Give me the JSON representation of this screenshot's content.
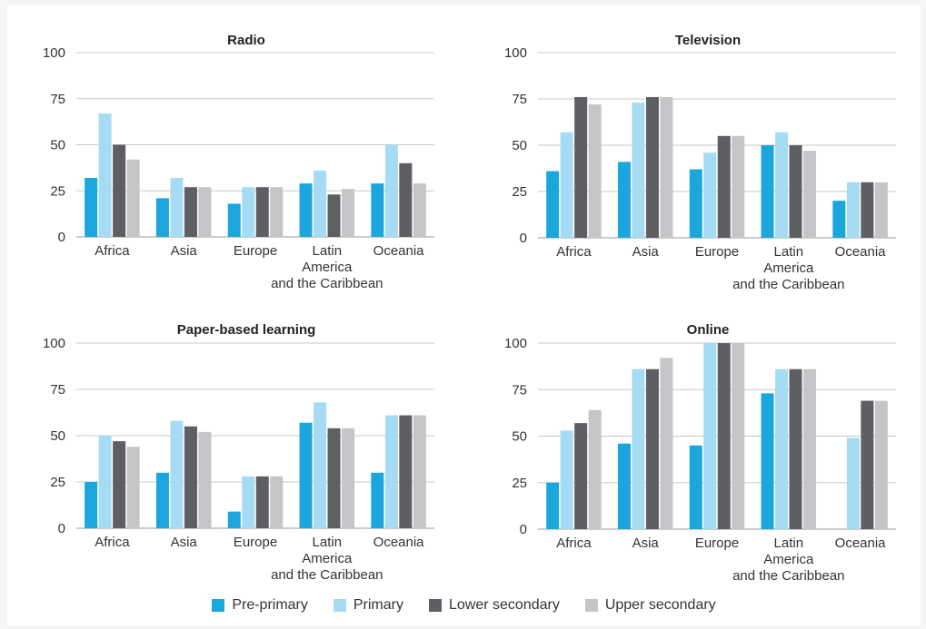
{
  "colors": {
    "pre_primary": "#1ba6dd",
    "primary": "#a6dcf3",
    "lower_secondary": "#5d5f63",
    "upper_secondary": "#c4c5c7"
  },
  "legend": [
    {
      "name": "Pre-primary",
      "color": "#1ba6dd"
    },
    {
      "name": "Primary",
      "color": "#a6dcf3"
    },
    {
      "name": "Lower secondary",
      "color": "#5d5f63"
    },
    {
      "name": "Upper secondary",
      "color": "#c4c5c7"
    }
  ],
  "chart_data": [
    {
      "type": "bar",
      "title": "Radio",
      "categories": [
        [
          "Africa"
        ],
        [
          "Asia"
        ],
        [
          "Europe"
        ],
        [
          "Latin",
          "America",
          "and the Caribbean"
        ],
        [
          "Oceania"
        ]
      ],
      "yticks": [
        0,
        25,
        50,
        75,
        100
      ],
      "ylim": [
        0,
        100
      ],
      "series": [
        {
          "name": "Pre-primary",
          "values": [
            32,
            21,
            18,
            29,
            29
          ]
        },
        {
          "name": "Primary",
          "values": [
            67,
            32,
            27,
            36,
            50
          ]
        },
        {
          "name": "Lower secondary",
          "values": [
            50,
            27,
            27,
            23,
            40
          ]
        },
        {
          "name": "Upper secondary",
          "values": [
            42,
            27,
            27,
            26,
            29
          ]
        }
      ]
    },
    {
      "type": "bar",
      "title": "Television",
      "categories": [
        [
          "Africa"
        ],
        [
          "Asia"
        ],
        [
          "Europe"
        ],
        [
          "Latin",
          "America",
          "and the Caribbean"
        ],
        [
          "Oceania"
        ]
      ],
      "yticks": [
        0,
        25,
        50,
        75,
        100
      ],
      "ylim": [
        0,
        100
      ],
      "series": [
        {
          "name": "Pre-primary",
          "values": [
            36,
            41,
            37,
            50,
            20
          ]
        },
        {
          "name": "Primary",
          "values": [
            57,
            73,
            46,
            57,
            30
          ]
        },
        {
          "name": "Lower secondary",
          "values": [
            76,
            76,
            55,
            50,
            30
          ]
        },
        {
          "name": "Upper secondary",
          "values": [
            72,
            76,
            55,
            47,
            30
          ]
        }
      ]
    },
    {
      "type": "bar",
      "title": "Paper-based learning",
      "categories": [
        [
          "Africa"
        ],
        [
          "Asia"
        ],
        [
          "Europe"
        ],
        [
          "Latin",
          "America",
          "and the Caribbean"
        ],
        [
          "Oceania"
        ]
      ],
      "yticks": [
        0,
        25,
        50,
        75,
        100
      ],
      "ylim": [
        0,
        100
      ],
      "series": [
        {
          "name": "Pre-primary",
          "values": [
            25,
            30,
            9,
            57,
            30
          ]
        },
        {
          "name": "Primary",
          "values": [
            50,
            58,
            28,
            68,
            61
          ]
        },
        {
          "name": "Lower secondary",
          "values": [
            47,
            55,
            28,
            54,
            61
          ]
        },
        {
          "name": "Upper secondary",
          "values": [
            44,
            52,
            28,
            54,
            61
          ]
        }
      ]
    },
    {
      "type": "bar",
      "title": "Online",
      "categories": [
        [
          "Africa"
        ],
        [
          "Asia"
        ],
        [
          "Europe"
        ],
        [
          "Latin",
          "America",
          "and the Caribbean"
        ],
        [
          "Oceania"
        ]
      ],
      "yticks": [
        0,
        25,
        50,
        75,
        100
      ],
      "ylim": [
        0,
        100
      ],
      "series": [
        {
          "name": "Pre-primary",
          "values": [
            25,
            46,
            45,
            73,
            0
          ]
        },
        {
          "name": "Primary",
          "values": [
            53,
            86,
            100,
            86,
            49
          ]
        },
        {
          "name": "Lower secondary",
          "values": [
            57,
            86,
            100,
            86,
            69
          ]
        },
        {
          "name": "Upper secondary",
          "values": [
            64,
            92,
            100,
            86,
            69
          ]
        }
      ]
    }
  ]
}
